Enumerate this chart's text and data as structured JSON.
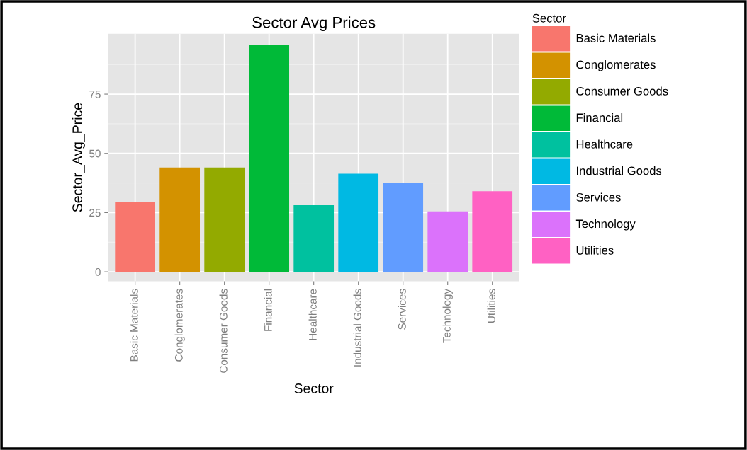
{
  "chart_data": {
    "type": "bar",
    "title": "Sector Avg Prices",
    "xlabel": "Sector",
    "ylabel": "Sector_Avg_Price",
    "legend_title": "Sector",
    "categories": [
      "Basic Materials",
      "Conglomerates",
      "Consumer Goods",
      "Financial",
      "Healthcare",
      "Industrial Goods",
      "Services",
      "Technology",
      "Utilities"
    ],
    "series": [
      {
        "name": "Basic Materials",
        "color": "#f8766d",
        "values": [
          29.5,
          null,
          null,
          null,
          null,
          null,
          null,
          null,
          null
        ]
      },
      {
        "name": "Conglomerates",
        "color": "#d39200",
        "values": [
          null,
          44.0,
          null,
          null,
          null,
          null,
          null,
          null,
          null
        ]
      },
      {
        "name": "Consumer Goods",
        "color": "#93aa00",
        "values": [
          null,
          null,
          44.0,
          null,
          null,
          null,
          null,
          null,
          null
        ]
      },
      {
        "name": "Financial",
        "color": "#00ba38",
        "values": [
          null,
          null,
          null,
          95.9,
          null,
          null,
          null,
          null,
          null
        ]
      },
      {
        "name": "Healthcare",
        "color": "#00c19f",
        "values": [
          null,
          null,
          null,
          null,
          28.1,
          null,
          null,
          null,
          null
        ]
      },
      {
        "name": "Industrial Goods",
        "color": "#00b9e3",
        "values": [
          null,
          null,
          null,
          null,
          null,
          41.4,
          null,
          null,
          null
        ]
      },
      {
        "name": "Services",
        "color": "#619cff",
        "values": [
          null,
          null,
          null,
          null,
          null,
          null,
          37.4,
          null,
          null
        ]
      },
      {
        "name": "Technology",
        "color": "#db72fb",
        "values": [
          null,
          null,
          null,
          null,
          null,
          null,
          null,
          25.5,
          null
        ]
      },
      {
        "name": "Utilities",
        "color": "#ff61c3",
        "values": [
          null,
          null,
          null,
          null,
          null,
          null,
          null,
          null,
          34.0
        ]
      }
    ],
    "ylim": [
      -4,
      100.5
    ],
    "yticks": [
      0,
      25,
      50,
      75
    ],
    "grid": true,
    "legend": "right"
  }
}
